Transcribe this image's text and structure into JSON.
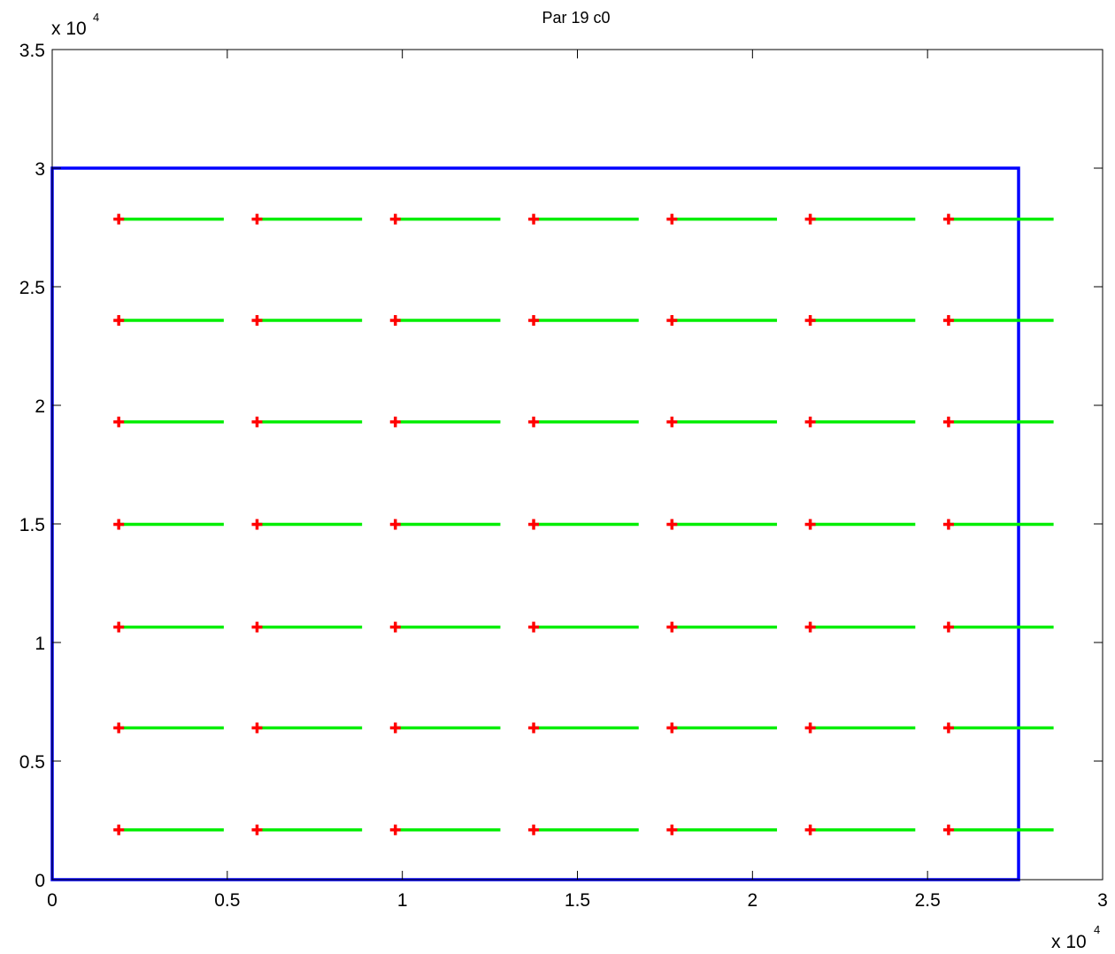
{
  "chart_data": {
    "type": "line",
    "title": "Par 19 c0",
    "xlabel": "",
    "ylabel": "",
    "x_exponent_label": "x 10",
    "x_exponent_power": "4",
    "y_exponent_label": "x 10",
    "y_exponent_power": "4",
    "xlim": [
      0,
      30000
    ],
    "ylim": [
      0,
      35000
    ],
    "x_ticks": [
      {
        "value": 0,
        "label": "0"
      },
      {
        "value": 5000,
        "label": "0.5"
      },
      {
        "value": 10000,
        "label": "1"
      },
      {
        "value": 15000,
        "label": "1.5"
      },
      {
        "value": 20000,
        "label": "2"
      },
      {
        "value": 25000,
        "label": "2.5"
      },
      {
        "value": 30000,
        "label": "3"
      }
    ],
    "y_ticks": [
      {
        "value": 0,
        "label": "0"
      },
      {
        "value": 5000,
        "label": "0.5"
      },
      {
        "value": 10000,
        "label": "1"
      },
      {
        "value": 15000,
        "label": "1.5"
      },
      {
        "value": 20000,
        "label": "2"
      },
      {
        "value": 25000,
        "label": "2.5"
      },
      {
        "value": 30000,
        "label": "3"
      },
      {
        "value": 35000,
        "label": "3.5"
      }
    ],
    "grid": false,
    "legend": "none",
    "boundary": {
      "color": "#0000ff",
      "x": [
        0,
        27600,
        27600,
        0
      ],
      "y": [
        0,
        0,
        30000,
        30000
      ]
    },
    "markers": {
      "color": "#ff0000",
      "shape": "plus",
      "x": [
        1900,
        5850,
        9800,
        13750,
        17700,
        21650,
        25600
      ],
      "y": [
        2100,
        6400,
        10650,
        14980,
        19300,
        23580,
        27850
      ]
    },
    "segments": {
      "color": "#00ee00",
      "length": 3000
    },
    "colors": {
      "axes": "#000000",
      "background": "#ffffff"
    }
  }
}
